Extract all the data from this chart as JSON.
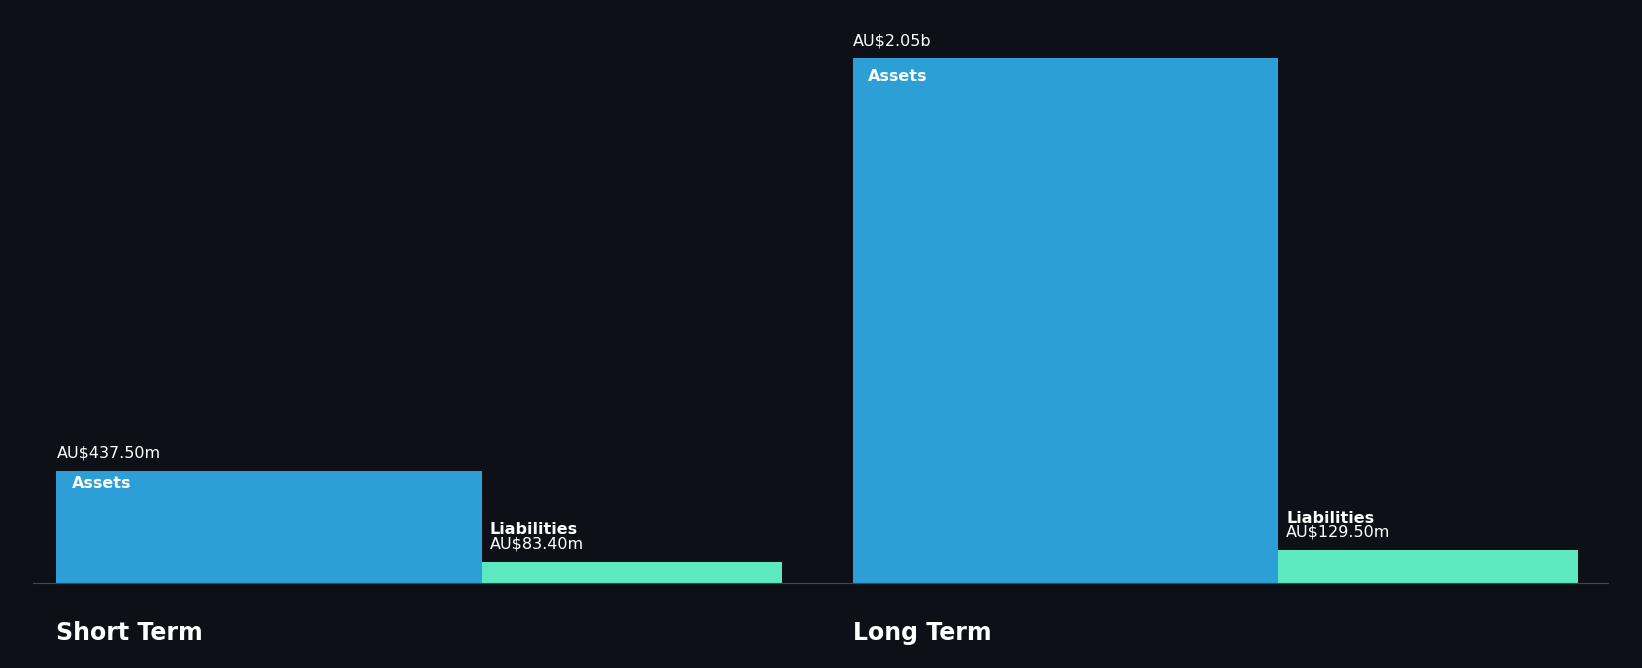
{
  "background_color": "#0d1117",
  "text_color": "#ffffff",
  "asset_color": "#2b9fd6",
  "liability_color": "#5ee8c0",
  "short_term": {
    "label": "Short Term",
    "assets_value": 437.5,
    "assets_label": "AU$437.50m",
    "assets_inner_label": "Assets",
    "liabilities_value": 83.4,
    "liabilities_label": "AU$83.40m",
    "liabilities_inner_label": "Liabilities"
  },
  "long_term": {
    "label": "Long Term",
    "assets_value": 2050.0,
    "assets_label": "AU$2.05b",
    "assets_inner_label": "Assets",
    "liabilities_value": 129.5,
    "liabilities_label": "AU$129.50m",
    "liabilities_inner_label": "Liabilities"
  },
  "figsize": [
    16.42,
    6.68
  ],
  "dpi": 100
}
